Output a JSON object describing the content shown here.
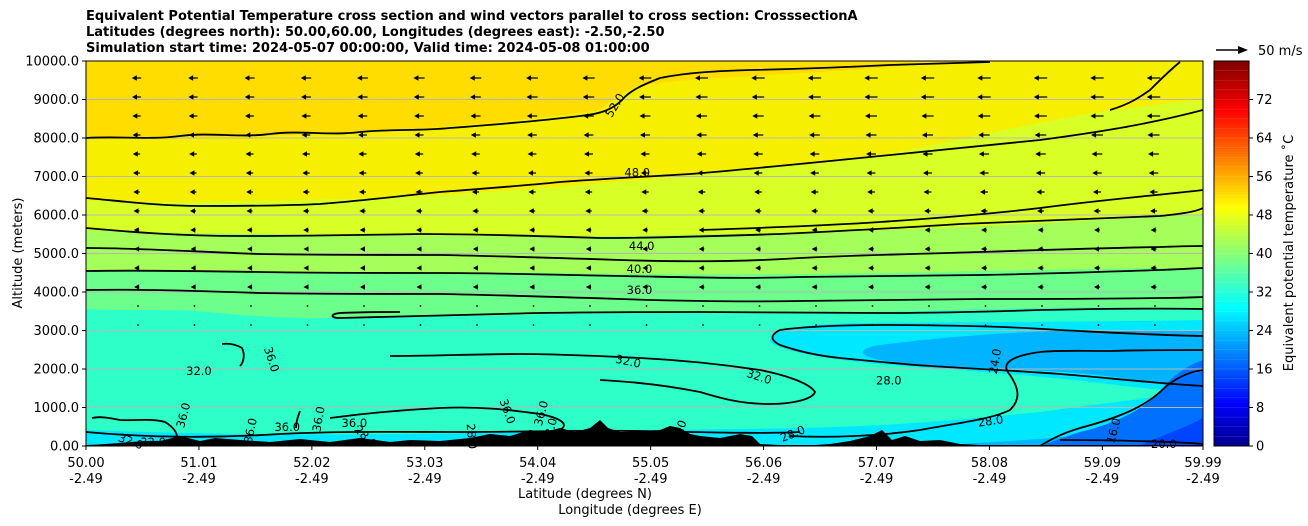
{
  "chart_data": {
    "type": "filled-contour cross section with wind vectors",
    "title_lines": [
      "Equivalent Potential Temperature cross section and wind vectors parallel to cross section: CrosssectionA",
      "Latitudes (degrees north): 50.00,60.00, Longitudes (degrees east): -2.50,-2.50",
      "Simulation start time: 2024-05-07 00:00:00, Valid time: 2024-05-08 01:00:00"
    ],
    "ylabel": "Altitude (meters)",
    "xlabel_line1": "Latitude (degrees N)",
    "xlabel_line2": "Longitude (degrees E)",
    "xlim": [
      50.0,
      59.99
    ],
    "ylim": [
      0,
      10000
    ],
    "x_ticks": [
      {
        "value": 50.0,
        "lat": "50.00",
        "lon": "-2.49"
      },
      {
        "value": 51.01,
        "lat": "51.01",
        "lon": "-2.49"
      },
      {
        "value": 52.02,
        "lat": "52.02",
        "lon": "-2.49"
      },
      {
        "value": 53.03,
        "lat": "53.03",
        "lon": "-2.49"
      },
      {
        "value": 54.04,
        "lat": "54.04",
        "lon": "-2.49"
      },
      {
        "value": 55.05,
        "lat": "55.05",
        "lon": "-2.49"
      },
      {
        "value": 56.06,
        "lat": "56.06",
        "lon": "-2.49"
      },
      {
        "value": 57.07,
        "lat": "57.07",
        "lon": "-2.49"
      },
      {
        "value": 58.08,
        "lat": "58.08",
        "lon": "-2.49"
      },
      {
        "value": 59.09,
        "lat": "59.09",
        "lon": "-2.49"
      },
      {
        "value": 59.99,
        "lat": "59.99",
        "lon": "-2.49"
      }
    ],
    "y_ticks": [
      {
        "value": 0,
        "label": "0.00"
      },
      {
        "value": 1000,
        "label": "1000.0"
      },
      {
        "value": 2000,
        "label": "2000.0"
      },
      {
        "value": 3000,
        "label": "3000.0"
      },
      {
        "value": 4000,
        "label": "4000.0"
      },
      {
        "value": 5000,
        "label": "5000.0"
      },
      {
        "value": 6000,
        "label": "6000.0"
      },
      {
        "value": 7000,
        "label": "7000.0"
      },
      {
        "value": 8000,
        "label": "8000.0"
      },
      {
        "value": 9000,
        "label": "9000.0"
      },
      {
        "value": 10000,
        "label": "10000.0"
      }
    ],
    "grid": "horizontal",
    "colorbar": {
      "label": "Equivalent potential temperature ˚C",
      "range": [
        0,
        80
      ],
      "ticks": [
        "0",
        "8",
        "16",
        "24",
        "32",
        "40",
        "48",
        "56",
        "64",
        "72"
      ],
      "colormap": "jet"
    },
    "wind_key": {
      "label": "50 m/s",
      "placement": "top-right"
    },
    "filled_field_layers": [
      {
        "value": 52,
        "color": "#ffdd00",
        "region": "upper left above ~8500 m, thinning to the right"
      },
      {
        "value": 48,
        "color": "#f6f000",
        "region": "~6500-9500 m"
      },
      {
        "value": 42,
        "color": "#d8ff26",
        "region": "~5200-6500 m"
      },
      {
        "value": 38,
        "color": "#a4ff5a",
        "region": "~4300-5200 m"
      },
      {
        "value": 34,
        "color": "#6cff8b",
        "region": "~3400-4300 m"
      },
      {
        "value": 31,
        "color": "#2effc8",
        "region": "lower layer ~500-3400 m"
      },
      {
        "value": 28,
        "color": "#00e8ff",
        "region": "right side 1500-2800 m, near surface"
      },
      {
        "value": 24,
        "color": "#00b4ff",
        "region": "lower right 57-60N"
      },
      {
        "value": 18,
        "color": "#0070ff",
        "region": "bottom right corner below 1500 m"
      }
    ],
    "contour_labels": [
      {
        "text": "52.0",
        "x": 54.73,
        "y": 8850,
        "rotation": -58
      },
      {
        "text": "48.0",
        "x": 54.93,
        "y": 7100,
        "rotation": 0
      },
      {
        "text": "44.0",
        "x": 54.97,
        "y": 5200,
        "rotation": 0
      },
      {
        "text": "40.0",
        "x": 54.95,
        "y": 4600,
        "rotation": 0
      },
      {
        "text": "36.0",
        "x": 54.95,
        "y": 4050,
        "rotation": 0
      },
      {
        "text": "36.0",
        "x": 51.66,
        "y": 2250,
        "rotation": 72
      },
      {
        "text": "32.0",
        "x": 51.01,
        "y": 1950,
        "rotation": 0
      },
      {
        "text": "32.0",
        "x": 54.85,
        "y": 2200,
        "rotation": 12
      },
      {
        "text": "32.0",
        "x": 56.02,
        "y": 1800,
        "rotation": 18
      },
      {
        "text": "28.0",
        "x": 57.18,
        "y": 1700,
        "rotation": 0
      },
      {
        "text": "24.0",
        "x": 58.13,
        "y": 2200,
        "rotation": -80
      },
      {
        "text": "28.0",
        "x": 58.09,
        "y": 650,
        "rotation": -8
      },
      {
        "text": "28.0",
        "x": 56.32,
        "y": 320,
        "rotation": -22
      },
      {
        "text": "16.0",
        "x": 59.19,
        "y": 400,
        "rotation": -75
      },
      {
        "text": "20.0",
        "x": 59.64,
        "y": 50,
        "rotation": 0
      },
      {
        "text": "36.0",
        "x": 51.8,
        "y": 500,
        "rotation": 0
      },
      {
        "text": "36.0",
        "x": 52.4,
        "y": 600,
        "rotation": 0
      },
      {
        "text": "36.0",
        "x": 52.08,
        "y": 700,
        "rotation": -80
      },
      {
        "text": "36.0",
        "x": 50.87,
        "y": 800,
        "rotation": -75
      },
      {
        "text": "36.0",
        "x": 51.47,
        "y": 400,
        "rotation": -78
      },
      {
        "text": "36.0",
        "x": 53.77,
        "y": 900,
        "rotation": 70
      },
      {
        "text": "36.0",
        "x": 54.07,
        "y": 850,
        "rotation": -75
      },
      {
        "text": "32.0",
        "x": 50.4,
        "y": 120,
        "rotation": 20
      },
      {
        "text": "32.0",
        "x": 50.6,
        "y": 100,
        "rotation": 0
      },
      {
        "text": "28.0",
        "x": 52.5,
        "y": 250,
        "rotation": 45
      },
      {
        "text": "28.0",
        "x": 53.45,
        "y": 250,
        "rotation": 85
      },
      {
        "text": "28.0",
        "x": 54.15,
        "y": 400,
        "rotation": -75
      },
      {
        "text": "28.0",
        "x": 55.3,
        "y": 350,
        "rotation": -70
      }
    ]
  }
}
